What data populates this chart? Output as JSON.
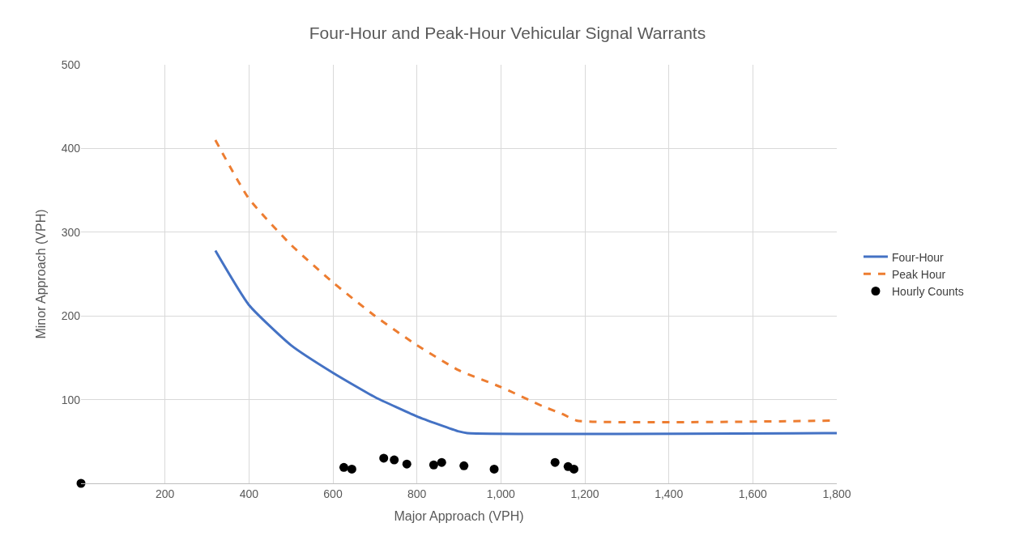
{
  "chart_data": {
    "type": "line",
    "title": "Four-Hour and Peak-Hour Vehicular Signal Warrants",
    "xlabel": "Major Approach (VPH)",
    "ylabel": "Minor Approach (VPH)",
    "xlim": [
      0,
      1800
    ],
    "xticks": [
      {
        "value": 200,
        "label": "200"
      },
      {
        "value": 400,
        "label": "400"
      },
      {
        "value": 600,
        "label": "600"
      },
      {
        "value": 800,
        "label": "800"
      },
      {
        "value": 1000,
        "label": "1,000"
      },
      {
        "value": 1200,
        "label": "1,200"
      },
      {
        "value": 1400,
        "label": "1,400"
      },
      {
        "value": 1600,
        "label": "1,600"
      },
      {
        "value": 1800,
        "label": "1,800"
      }
    ],
    "ylim": [
      0,
      500
    ],
    "yticks": [
      100,
      200,
      300,
      400,
      500
    ],
    "grid": true,
    "legend": "right",
    "series": [
      {
        "name": "Four-Hour",
        "color": "#4472c4",
        "line_style": "solid",
        "marker": "none",
        "x": [
          320,
          400,
          500,
          600,
          700,
          800,
          900,
          920,
          1800
        ],
        "values": [
          278,
          213,
          165,
          132,
          103,
          80,
          62,
          60,
          60
        ]
      },
      {
        "name": "Peak Hour",
        "color": "#ed7d31",
        "line_style": "dashed",
        "marker": "none",
        "x": [
          320,
          400,
          500,
          600,
          700,
          800,
          900,
          1000,
          1100,
          1150,
          1180,
          1800
        ],
        "values": [
          410,
          340,
          285,
          240,
          200,
          165,
          135,
          115,
          92,
          82,
          75,
          75
        ]
      },
      {
        "name": "Hourly Counts",
        "type": "scatter",
        "color": "#000000",
        "marker": "circle",
        "x": [
          0,
          626,
          645,
          721,
          746,
          776,
          840,
          859,
          912,
          984,
          1129,
          1160,
          1174
        ],
        "values": [
          0,
          19,
          17,
          30,
          28,
          23,
          22,
          25,
          21,
          17,
          25,
          20,
          17
        ]
      }
    ]
  }
}
